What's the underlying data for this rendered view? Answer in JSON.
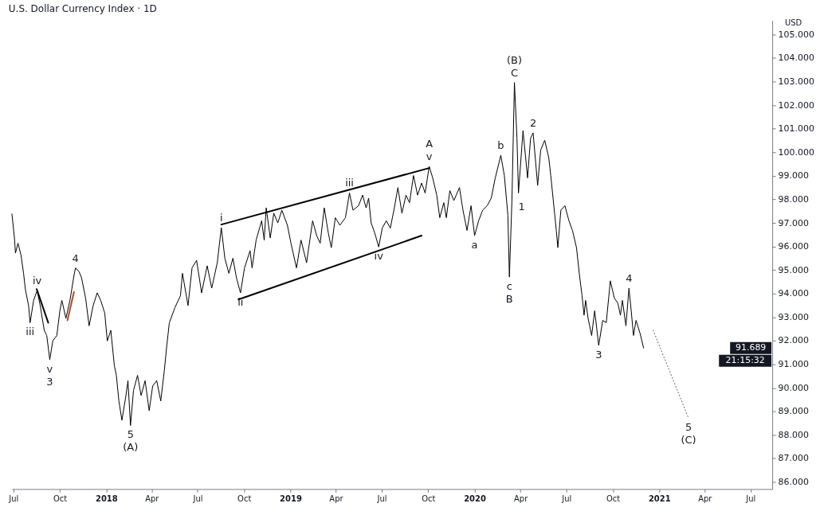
{
  "chart_data": {
    "type": "line",
    "title": "U.S. Dollar Currency Index · 1D",
    "ylabel": "USD",
    "xlim": [
      "2017-06-28",
      "2021-08-13"
    ],
    "xticks": [
      {
        "value": "2017-07",
        "label": "Jul"
      },
      {
        "value": "2017-10",
        "label": "Oct"
      },
      {
        "value": "2018-01",
        "label": "2018"
      },
      {
        "value": "2018-04",
        "label": "Apr"
      },
      {
        "value": "2018-07",
        "label": "Jul"
      },
      {
        "value": "2018-10",
        "label": "Oct"
      },
      {
        "value": "2019-01",
        "label": "2019"
      },
      {
        "value": "2019-04",
        "label": "Apr"
      },
      {
        "value": "2019-07",
        "label": "Jul"
      },
      {
        "value": "2019-10",
        "label": "Oct"
      },
      {
        "value": "2020-01",
        "label": "2020"
      },
      {
        "value": "2020-04",
        "label": "Apr"
      },
      {
        "value": "2020-07",
        "label": "Jul"
      },
      {
        "value": "2020-10",
        "label": "Oct"
      },
      {
        "value": "2021-01",
        "label": "2021"
      },
      {
        "value": "2021-04",
        "label": "Apr"
      },
      {
        "value": "2021-07",
        "label": "Jul"
      }
    ],
    "ylim": [
      85.7,
      105.6
    ],
    "yticks": [
      {
        "value": 86,
        "label": "86.000"
      },
      {
        "value": 87,
        "label": "87.000"
      },
      {
        "value": 88,
        "label": "88.000"
      },
      {
        "value": 89,
        "label": "89.000"
      },
      {
        "value": 90,
        "label": "90.000"
      },
      {
        "value": 91,
        "label": "91.000"
      },
      {
        "value": 92,
        "label": "92.000"
      },
      {
        "value": 93,
        "label": "93.000"
      },
      {
        "value": 94,
        "label": "94.000"
      },
      {
        "value": 95,
        "label": "95.000"
      },
      {
        "value": 96,
        "label": "96.000"
      },
      {
        "value": 97,
        "label": "97.000"
      },
      {
        "value": 98,
        "label": "98.000"
      },
      {
        "value": 99,
        "label": "99.000"
      },
      {
        "value": 100,
        "label": "100.000"
      },
      {
        "value": 101,
        "label": "101.000"
      },
      {
        "value": 102,
        "label": "102.000"
      },
      {
        "value": 103,
        "label": "103.000"
      },
      {
        "value": 104,
        "label": "104.000"
      },
      {
        "value": 105,
        "label": "105.000"
      }
    ],
    "grid": false,
    "series": [
      {
        "color": "#000000",
        "x": [
          "2017-06-28",
          "2017-07-03",
          "2017-07-05",
          "2017-07-10",
          "2017-07-16",
          "2017-07-21",
          "2017-07-25",
          "2017-07-31",
          "2017-08-03",
          "2017-08-10",
          "2017-08-17",
          "2017-08-23",
          "2017-08-31",
          "2017-09-05",
          "2017-09-11",
          "2017-09-17",
          "2017-09-25",
          "2017-10-01",
          "2017-10-05",
          "2017-10-13",
          "2017-10-21",
          "2017-10-29",
          "2017-11-01",
          "2017-11-08",
          "2017-11-13",
          "2017-11-21",
          "2017-11-28",
          "2017-12-06",
          "2017-12-14",
          "2017-12-21",
          "2017-12-29",
          "2018-01-03",
          "2018-01-10",
          "2018-01-17",
          "2018-01-21",
          "2018-01-26",
          "2018-02-01",
          "2018-02-09",
          "2018-02-13",
          "2018-02-18",
          "2018-02-24",
          "2018-03-04",
          "2018-03-11",
          "2018-03-19",
          "2018-03-27",
          "2018-04-03",
          "2018-04-11",
          "2018-04-19",
          "2018-04-26",
          "2018-05-01",
          "2018-05-06",
          "2018-05-17",
          "2018-05-28",
          "2018-06-01",
          "2018-06-12",
          "2018-06-20",
          "2018-06-29",
          "2018-07-09",
          "2018-07-20",
          "2018-07-29",
          "2018-08-09",
          "2018-08-17",
          "2018-08-24",
          "2018-09-01",
          "2018-09-09",
          "2018-09-16",
          "2018-09-24",
          "2018-10-02",
          "2018-10-13",
          "2018-10-17",
          "2018-10-25",
          "2018-11-05",
          "2018-11-10",
          "2018-11-14",
          "2018-11-22",
          "2018-11-29",
          "2018-12-07",
          "2018-12-15",
          "2018-12-26",
          "2019-01-02",
          "2019-01-13",
          "2019-01-22",
          "2019-02-02",
          "2019-02-14",
          "2019-02-22",
          "2019-03-01",
          "2019-03-09",
          "2019-03-17",
          "2019-03-23",
          "2019-03-31",
          "2019-04-09",
          "2019-04-20",
          "2019-04-28",
          "2019-05-05",
          "2019-05-16",
          "2019-05-24",
          "2019-05-31",
          "2019-06-05",
          "2019-06-10",
          "2019-06-17",
          "2019-06-25",
          "2019-07-02",
          "2019-07-10",
          "2019-07-18",
          "2019-07-26",
          "2019-08-02",
          "2019-08-10",
          "2019-08-18",
          "2019-08-25",
          "2019-09-02",
          "2019-09-10",
          "2019-09-18",
          "2019-09-25",
          "2019-10-03",
          "2019-10-10",
          "2019-10-18",
          "2019-10-24",
          "2019-11-01",
          "2019-11-06",
          "2019-11-13",
          "2019-11-21",
          "2019-12-02",
          "2019-12-09",
          "2019-12-17",
          "2019-12-25",
          "2020-01-01",
          "2020-01-09",
          "2020-01-17",
          "2020-01-26",
          "2020-02-03",
          "2020-02-11",
          "2020-02-22",
          "2020-02-29",
          "2020-03-07",
          "2020-03-10",
          "2020-03-15",
          "2020-03-20",
          "2020-03-25",
          "2020-03-28",
          "2020-04-06",
          "2020-04-15",
          "2020-04-21",
          "2020-04-26",
          "2020-05-05",
          "2020-05-11",
          "2020-05-19",
          "2020-05-27",
          "2020-05-31",
          "2020-06-05",
          "2020-06-11",
          "2020-06-14",
          "2020-06-20",
          "2020-06-28",
          "2020-07-06",
          "2020-07-13",
          "2020-07-21",
          "2020-07-27",
          "2020-08-01",
          "2020-08-05",
          "2020-08-08",
          "2020-08-13",
          "2020-08-20",
          "2020-08-26",
          "2020-09-03",
          "2020-09-11",
          "2020-09-18",
          "2020-09-26",
          "2020-10-04",
          "2020-10-11",
          "2020-10-16",
          "2020-10-20",
          "2020-10-27",
          "2020-11-02",
          "2020-11-05",
          "2020-11-11",
          "2020-11-16",
          "2020-11-24",
          "2020-12-01"
        ],
        "values": [
          97.38,
          96.36,
          95.72,
          96.14,
          95.63,
          94.86,
          94.13,
          93.49,
          92.76,
          93.71,
          94.13,
          93.49,
          92.44,
          92.22,
          91.2,
          91.99,
          92.22,
          93.27,
          93.71,
          92.95,
          93.71,
          94.77,
          95.09,
          94.93,
          94.67,
          93.81,
          92.63,
          93.49,
          94.03,
          93.71,
          93.17,
          91.99,
          92.44,
          90.94,
          90.53,
          89.44,
          88.62,
          89.67,
          90.3,
          88.4,
          89.89,
          90.53,
          89.67,
          90.3,
          89.03,
          90.08,
          90.3,
          89.44,
          90.72,
          91.8,
          92.76,
          93.4,
          93.91,
          94.86,
          93.49,
          95.09,
          95.41,
          94.03,
          95.18,
          94.23,
          95.31,
          96.8,
          95.5,
          94.86,
          95.5,
          94.67,
          94.03,
          95.09,
          95.82,
          95.09,
          96.27,
          97.09,
          96.27,
          97.64,
          96.36,
          97.41,
          97.0,
          97.54,
          96.9,
          96.14,
          95.09,
          96.27,
          95.31,
          97.09,
          96.46,
          96.14,
          97.64,
          96.58,
          95.95,
          97.22,
          96.9,
          97.22,
          98.27,
          97.54,
          97.73,
          98.18,
          97.64,
          98.05,
          97.0,
          96.58,
          95.98,
          96.78,
          97.09,
          96.78,
          97.64,
          98.5,
          97.41,
          98.18,
          97.86,
          99.01,
          98.18,
          98.69,
          98.27,
          99.4,
          98.91,
          98.18,
          97.22,
          97.86,
          97.22,
          98.37,
          97.95,
          98.5,
          97.54,
          96.68,
          97.73,
          96.46,
          97.09,
          97.54,
          97.73,
          98.05,
          98.91,
          99.87,
          99.01,
          97.32,
          94.7,
          97.95,
          102.96,
          100.6,
          98.27,
          100.92,
          98.91,
          100.6,
          100.82,
          98.59,
          100.09,
          100.51,
          99.77,
          99.01,
          97.95,
          96.68,
          95.95,
          97.54,
          97.73,
          97.09,
          96.68,
          95.95,
          94.77,
          93.91,
          93.08,
          93.71,
          92.95,
          92.22,
          93.27,
          91.8,
          92.86,
          92.76,
          94.54,
          93.81,
          93.59,
          93.08,
          93.71,
          92.63,
          94.23,
          93.59,
          92.22,
          92.86,
          92.31,
          91.689
        ]
      },
      {
        "color": "#000000",
        "x": [
          "2018-08-17",
          "2019-10-03"
        ],
        "values": [
          96.93,
          99.33
        ]
      },
      {
        "color": "#000000",
        "x": [
          "2018-09-20",
          "2019-09-18"
        ],
        "values": [
          93.75,
          96.46
        ]
      },
      {
        "color": "#000000",
        "x": [
          "2017-08-16",
          "2017-09-08"
        ],
        "values": [
          94.19,
          92.76
        ]
      },
      {
        "color": "#b7472a",
        "x": [
          "2017-10-16",
          "2017-10-29"
        ],
        "values": [
          92.86,
          94.07
        ]
      },
      {
        "color": "#555555",
        "line_style": "dotted",
        "x": [
          "2020-12-20",
          "2021-02-28"
        ],
        "values": [
          92.44,
          88.71
        ]
      }
    ],
    "annotations": [
      {
        "text": "iii",
        "x": "2017-08-03",
        "y": 92.76
      },
      {
        "text": "iv",
        "x": "2017-08-17",
        "y": 94.13
      },
      {
        "text": "v",
        "x": "2017-09-11",
        "y": 91.2
      },
      {
        "text": "3",
        "x": "2017-09-11",
        "y": 91.2
      },
      {
        "text": "4",
        "x": "2017-11-01",
        "y": 95.09
      },
      {
        "text": "5",
        "x": "2018-02-18",
        "y": 88.4
      },
      {
        "text": "(A)",
        "x": "2018-02-18",
        "y": 88.4
      },
      {
        "text": "i",
        "x": "2018-08-17",
        "y": 96.8
      },
      {
        "text": "ii",
        "x": "2018-09-24",
        "y": 94.03
      },
      {
        "text": "iii",
        "x": "2019-04-28",
        "y": 98.27
      },
      {
        "text": "iv",
        "x": "2019-06-25",
        "y": 95.98
      },
      {
        "text": "v",
        "x": "2019-10-03",
        "y": 99.4
      },
      {
        "text": "A",
        "x": "2019-10-03",
        "y": 99.4
      },
      {
        "text": "a",
        "x": "2020-01-01",
        "y": 96.46
      },
      {
        "text": "b",
        "x": "2020-02-22",
        "y": 99.87
      },
      {
        "text": "c",
        "x": "2020-03-10",
        "y": 94.7
      },
      {
        "text": "B",
        "x": "2020-03-10",
        "y": 94.7
      },
      {
        "text": "1",
        "x": "2020-03-15",
        "y": 97.95
      },
      {
        "text": "C",
        "x": "2020-03-20",
        "y": 102.96
      },
      {
        "text": "(B)",
        "x": "2020-03-20",
        "y": 102.96
      },
      {
        "text": "2",
        "x": "2020-04-26",
        "y": 100.82
      },
      {
        "text": "3",
        "x": "2020-09-03",
        "y": 91.8
      },
      {
        "text": "4",
        "x": "2020-11-02",
        "y": 94.23
      },
      {
        "text": "5",
        "x": "2021-02-28",
        "y": 88.71
      },
      {
        "text": "(C)",
        "x": "2021-02-28",
        "y": 88.71
      },
      "91.689",
      "21:15:32"
    ]
  }
}
